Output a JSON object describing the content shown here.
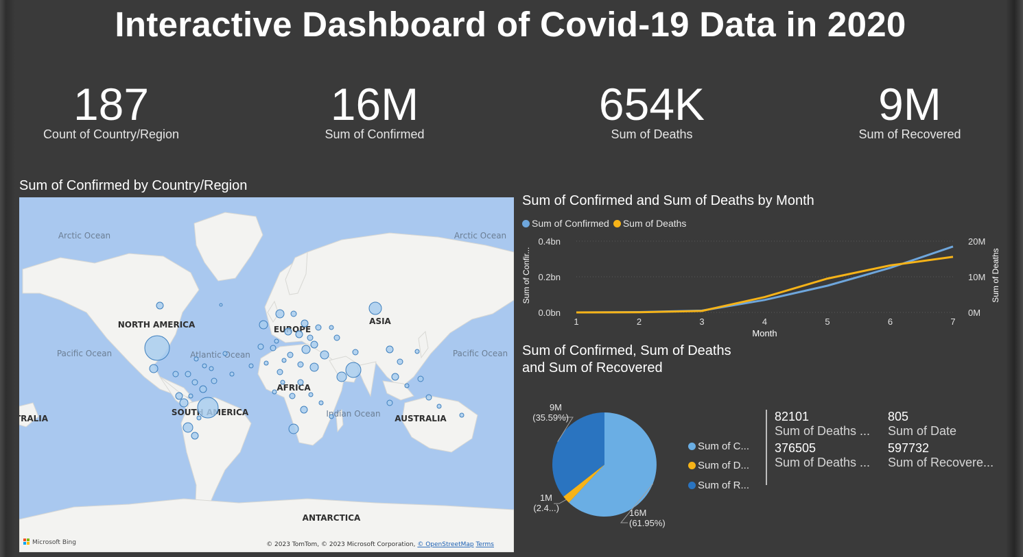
{
  "title": "Interactive Dashboard of Covid-19 Data in 2020",
  "kpis": [
    {
      "value": "187",
      "label": "Count of Country/Region"
    },
    {
      "value": "16M",
      "label": "Sum of Confirmed"
    },
    {
      "value": "654K",
      "label": "Sum of Deaths"
    },
    {
      "value": "9M",
      "label": "Sum of Recovered"
    }
  ],
  "map": {
    "title": "Sum of Confirmed by Country/Region",
    "labels": {
      "arctic_left": "Arctic Ocean",
      "arctic_right": "Arctic Ocean",
      "pacific_left": "Pacific Ocean",
      "pacific_right": "Pacific Ocean",
      "atlantic": "Atlantic Ocean",
      "indian": "Indian Ocean",
      "north_america": "NORTH AMERICA",
      "south_america": "SOUTH AMERICA",
      "europe": "EUROPE",
      "africa": "AFRICA",
      "asia": "ASIA",
      "australia": "AUSTRALIA",
      "australia_left": "TRALIA",
      "antarctica": "ANTARCTICA"
    },
    "bing": "Microsoft Bing",
    "copyright": "© 2023 TomTom, © 2023 Microsoft Corporation, ",
    "osm_link": "© OpenStreetMap",
    "terms": "Terms"
  },
  "line_chart": {
    "title": "Sum of Confirmed and Sum of Deaths by Month",
    "legend": [
      {
        "name": "Sum of Confirmed",
        "color": "#6ea6dc"
      },
      {
        "name": "Sum of Deaths",
        "color": "#f6b318"
      }
    ],
    "chart_data": {
      "type": "line",
      "x": [
        1,
        2,
        3,
        4,
        5,
        6,
        7
      ],
      "xlabel": "Month",
      "y_left_label": "Sum of Confir...",
      "y_right_label": "Sum of Deaths",
      "y_left_ticks": [
        "0.0bn",
        "0.2bn",
        "0.4bn"
      ],
      "y_right_ticks": [
        "0M",
        "10M",
        "20M"
      ],
      "y_left_range": [
        0,
        0.4
      ],
      "y_right_range": [
        0,
        20
      ],
      "series": [
        {
          "name": "Sum of Confirmed",
          "axis": "left",
          "unit": "bn",
          "values": [
            0.0,
            0.002,
            0.01,
            0.07,
            0.15,
            0.25,
            0.37
          ]
        },
        {
          "name": "Sum of Deaths",
          "axis": "right",
          "unit": "M",
          "values": [
            0.0,
            0.05,
            0.4,
            4.3,
            9.5,
            13.2,
            15.6
          ]
        }
      ]
    }
  },
  "pie_chart": {
    "title_line1": "Sum of Confirmed, Sum of Deaths",
    "title_line2": "and Sum of Recovered",
    "chart_data": {
      "type": "pie",
      "labels": [
        "Sum of Confirmed",
        "Sum of Deaths",
        "Sum of Recovered"
      ],
      "legend_labels": [
        "Sum of C...",
        "Sum of D...",
        "Sum of R..."
      ],
      "values": [
        61.95,
        2.46,
        35.59
      ],
      "colors": [
        "#6aaee4",
        "#f6b318",
        "#2a74c0"
      ],
      "data_labels": [
        {
          "value": "16M",
          "pct": "(61.95%)"
        },
        {
          "value": "1M",
          "pct": "(2.4...)"
        },
        {
          "value": "9M",
          "pct": "(35.59%)"
        }
      ]
    }
  },
  "cards": [
    {
      "number": "82101",
      "label": "Sum of Deaths ..."
    },
    {
      "number": "805",
      "label": "Sum of Date"
    },
    {
      "number": "376505",
      "label": "Sum of Deaths ..."
    },
    {
      "number": "597732",
      "label": "Sum of Recovere..."
    }
  ]
}
